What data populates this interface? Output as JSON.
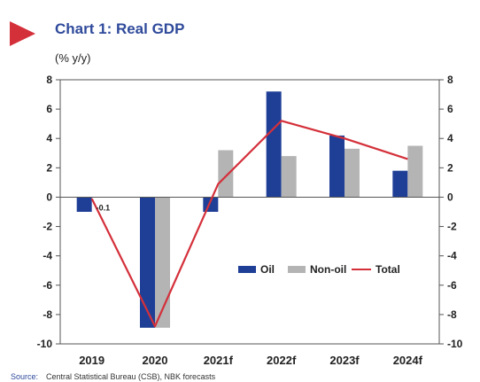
{
  "colors": {
    "oil": "#1f3f97",
    "non_oil": "#b4b4b4",
    "total": "#d4303a",
    "title": "#2f4a9b",
    "marker": "#d4303a"
  },
  "chart_data": {
    "type": "bar",
    "title": "Chart 1: Real GDP",
    "unit_label": "(% y/y)",
    "categories": [
      "2019",
      "2020",
      "2021f",
      "2022f",
      "2023f",
      "2024f"
    ],
    "series": [
      {
        "name": "Oil",
        "type": "bar",
        "values": [
          -1.0,
          -8.9,
          -1.0,
          7.2,
          4.2,
          1.8
        ]
      },
      {
        "name": "Non-oil",
        "type": "bar",
        "values": [
          0.0,
          -8.9,
          3.2,
          2.8,
          3.3,
          3.5
        ]
      },
      {
        "name": "Total",
        "type": "line",
        "values": [
          -0.1,
          -8.8,
          0.9,
          5.2,
          4.0,
          2.6
        ]
      }
    ],
    "annotations": [
      {
        "category": "2019",
        "text": "-0.1"
      }
    ],
    "yticks": [
      "8",
      "6",
      "4",
      "2",
      "0",
      "-2",
      "-4",
      "-6",
      "-8",
      "-10"
    ],
    "ylim": [
      -10,
      8
    ],
    "legend_position": "bottom-right",
    "dual_axis_mirror": true,
    "source_label": "Source:",
    "source_text": "Central Statistical Bureau (CSB), NBK forecasts"
  }
}
